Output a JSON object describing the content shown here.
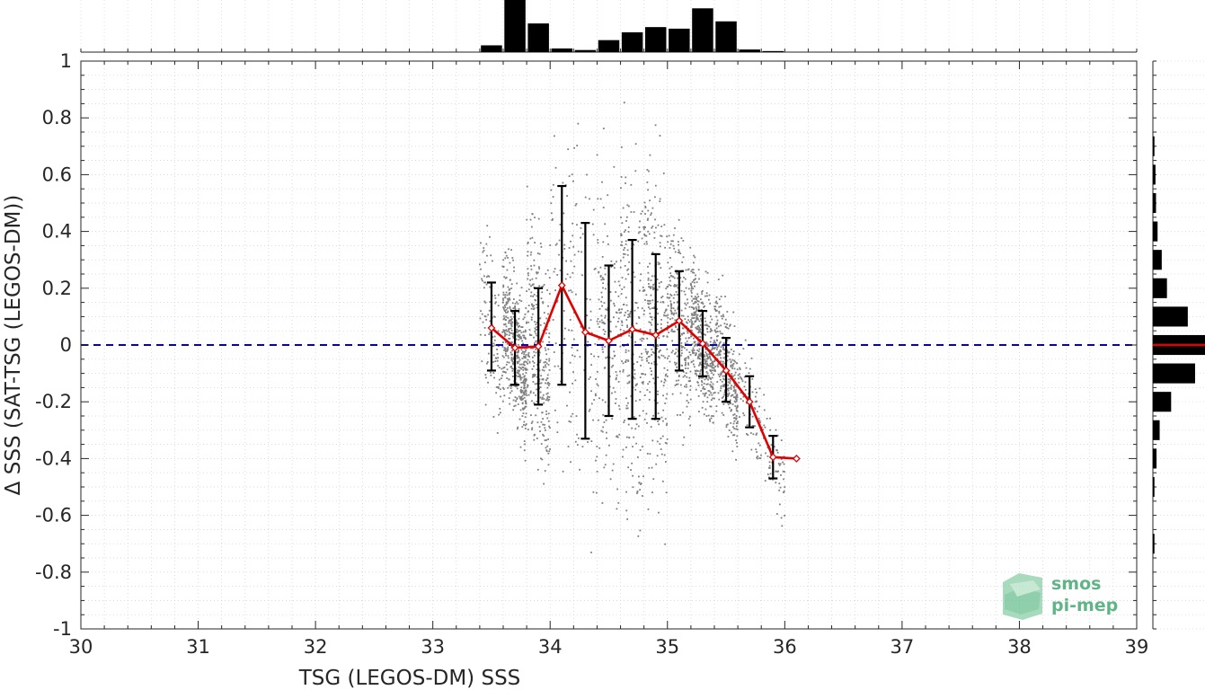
{
  "chart_data": {
    "type": "scatter",
    "title": "",
    "xlabel": "TSG (LEGOS-DM) SSS",
    "ylabel": "Δ SSS (SAT-TSG (LEGOS-DM))",
    "xlim": [
      30,
      39
    ],
    "ylim": [
      -1,
      1
    ],
    "xticks": [
      "30",
      "31",
      "32",
      "33",
      "34",
      "35",
      "36",
      "37",
      "38",
      "39"
    ],
    "yticks": [
      "1",
      "0.8",
      "0.6",
      "0.4",
      "0.2",
      "0",
      "-0.2",
      "-0.4",
      "-0.6",
      "-0.8",
      "-1"
    ],
    "grid": true,
    "zero_line": {
      "y": 0,
      "color": "#0000cc",
      "style": "dashed"
    },
    "scatter_color": "#7f7f7f",
    "binned_mean": {
      "color": "#e00000",
      "x": [
        33.5,
        33.7,
        33.9,
        34.1,
        34.3,
        34.5,
        34.7,
        34.9,
        35.1,
        35.3,
        35.5,
        35.7,
        35.9,
        36.1
      ],
      "y": [
        0.06,
        -0.01,
        -0.005,
        0.21,
        0.045,
        0.015,
        0.055,
        0.035,
        0.085,
        0.005,
        -0.09,
        -0.2,
        -0.395,
        -0.4
      ]
    },
    "error_bars": {
      "color": "#000000",
      "x": [
        33.5,
        33.7,
        33.9,
        34.1,
        34.3,
        34.5,
        34.7,
        34.9,
        35.1,
        35.3,
        35.5,
        35.7,
        35.9
      ],
      "low": [
        -0.09,
        -0.14,
        -0.21,
        -0.14,
        -0.33,
        -0.25,
        -0.26,
        -0.26,
        -0.09,
        -0.11,
        -0.2,
        -0.29,
        -0.47
      ],
      "high": [
        0.22,
        0.12,
        0.2,
        0.56,
        0.43,
        0.28,
        0.37,
        0.32,
        0.26,
        0.12,
        0.025,
        -0.11,
        -0.32
      ]
    },
    "histogram_x": {
      "color": "#000000",
      "bin_centers": [
        33.5,
        33.7,
        33.9,
        34.1,
        34.3,
        34.5,
        34.7,
        34.9,
        35.1,
        35.3,
        35.5,
        35.7,
        35.9
      ],
      "relative_counts": [
        0.13,
        1.0,
        0.55,
        0.07,
        0.04,
        0.23,
        0.38,
        0.48,
        0.45,
        0.84,
        0.59,
        0.05,
        0.02
      ]
    },
    "histogram_y": {
      "color": "#000000",
      "median_color": "#e00000",
      "median_value": 0,
      "bin_centers": [
        0.7,
        0.6,
        0.5,
        0.4,
        0.3,
        0.2,
        0.1,
        0.0,
        -0.1,
        -0.2,
        -0.3,
        -0.4,
        -0.5,
        -0.7
      ],
      "relative_counts": [
        0.03,
        0.05,
        0.06,
        0.09,
        0.17,
        0.27,
        0.67,
        1.0,
        0.81,
        0.35,
        0.13,
        0.07,
        0.03,
        0.03
      ]
    }
  },
  "logo": {
    "line1": "smos",
    "line2": "pi-mep",
    "color": "#5fb587"
  }
}
